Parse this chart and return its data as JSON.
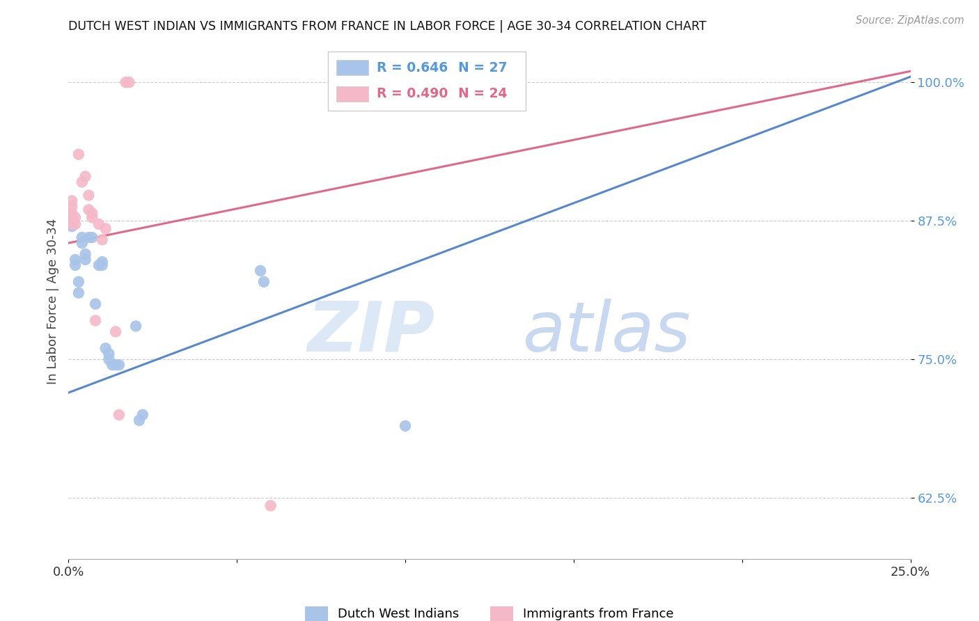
{
  "title": "DUTCH WEST INDIAN VS IMMIGRANTS FROM FRANCE IN LABOR FORCE | AGE 30-34 CORRELATION CHART",
  "source": "Source: ZipAtlas.com",
  "ylabel": "In Labor Force | Age 30-34",
  "xmin": 0.0,
  "xmax": 0.25,
  "ymin": 0.57,
  "ymax": 1.035,
  "xticks": [
    0.0,
    0.05,
    0.1,
    0.15,
    0.2,
    0.25
  ],
  "xticklabels": [
    "0.0%",
    "",
    "",
    "",
    "",
    "25.0%"
  ],
  "yticks": [
    0.625,
    0.75,
    0.875,
    1.0
  ],
  "yticklabels": [
    "62.5%",
    "75.0%",
    "87.5%",
    "100.0%"
  ],
  "legend_r_blue": "R = 0.646",
  "legend_n_blue": "N = 27",
  "legend_r_pink": "R = 0.490",
  "legend_n_pink": "N = 24",
  "blue_color": "#a8c4e8",
  "pink_color": "#f5b8c8",
  "blue_line_color": "#5588cc",
  "pink_line_color": "#e06888",
  "grid_color": "#cccccc",
  "blue_label": "Dutch West Indians",
  "pink_label": "Immigrants from France",
  "blue_scatter": [
    [
      0.001,
      0.87
    ],
    [
      0.002,
      0.84
    ],
    [
      0.002,
      0.835
    ],
    [
      0.003,
      0.82
    ],
    [
      0.003,
      0.81
    ],
    [
      0.004,
      0.86
    ],
    [
      0.004,
      0.855
    ],
    [
      0.005,
      0.845
    ],
    [
      0.005,
      0.84
    ],
    [
      0.006,
      0.86
    ],
    [
      0.007,
      0.86
    ],
    [
      0.008,
      0.8
    ],
    [
      0.009,
      0.835
    ],
    [
      0.01,
      0.838
    ],
    [
      0.01,
      0.835
    ],
    [
      0.011,
      0.76
    ],
    [
      0.012,
      0.755
    ],
    [
      0.012,
      0.75
    ],
    [
      0.013,
      0.745
    ],
    [
      0.014,
      0.745
    ],
    [
      0.015,
      0.745
    ],
    [
      0.02,
      0.78
    ],
    [
      0.021,
      0.695
    ],
    [
      0.022,
      0.7
    ],
    [
      0.057,
      0.83
    ],
    [
      0.058,
      0.82
    ],
    [
      0.1,
      0.69
    ]
  ],
  "pink_scatter": [
    [
      0.0,
      0.88
    ],
    [
      0.001,
      0.893
    ],
    [
      0.001,
      0.888
    ],
    [
      0.001,
      0.882
    ],
    [
      0.001,
      0.878
    ],
    [
      0.001,
      0.872
    ],
    [
      0.002,
      0.878
    ],
    [
      0.002,
      0.872
    ],
    [
      0.003,
      0.935
    ],
    [
      0.004,
      0.91
    ],
    [
      0.005,
      0.915
    ],
    [
      0.006,
      0.898
    ],
    [
      0.006,
      0.885
    ],
    [
      0.007,
      0.882
    ],
    [
      0.007,
      0.878
    ],
    [
      0.008,
      0.785
    ],
    [
      0.009,
      0.872
    ],
    [
      0.01,
      0.858
    ],
    [
      0.011,
      0.868
    ],
    [
      0.014,
      0.775
    ],
    [
      0.015,
      0.7
    ],
    [
      0.017,
      1.0
    ],
    [
      0.018,
      1.0
    ],
    [
      0.06,
      0.618
    ]
  ],
  "blue_line_x": [
    0.0,
    0.25
  ],
  "blue_line_y": [
    0.72,
    1.005
  ],
  "pink_line_x": [
    0.0,
    0.25
  ],
  "pink_line_y": [
    0.855,
    1.01
  ],
  "watermark_zip": "ZIP",
  "watermark_atlas": "atlas",
  "watermark_color": "#dce8f5",
  "scatter_size": 140
}
